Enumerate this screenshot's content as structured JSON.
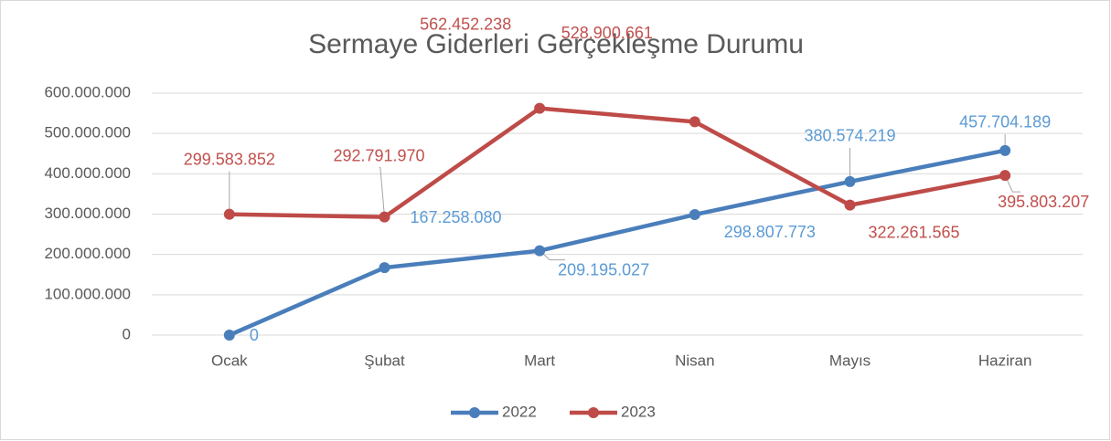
{
  "chart_data": {
    "type": "line",
    "title": "Sermaye Giderleri Gerçekleşme Durumu",
    "categories": [
      "Ocak",
      "Şubat",
      "Mart",
      "Nisan",
      "Mayıs",
      "Haziran"
    ],
    "series": [
      {
        "name": "2022",
        "color": "#4a7ebb",
        "label_color": "#5b9bd5",
        "values": [
          0,
          167258080,
          209195027,
          298807773,
          380574219,
          457704189
        ],
        "value_labels": [
          "0",
          "167.258.080",
          "209.195.027",
          "298.807.773",
          "380.574.219",
          "457.704.189"
        ]
      },
      {
        "name": "2023",
        "color": "#be4b48",
        "label_color": "#c0504d",
        "values": [
          299583852,
          292791970,
          562452238,
          528900661,
          322261565,
          395803207
        ],
        "value_labels": [
          "299.583.852",
          "292.791.970",
          "562.452.238",
          "528.900.661",
          "322.261.565",
          "395.803.207"
        ]
      }
    ],
    "ylim": [
      0,
      600000000
    ],
    "yticks": [
      0,
      {
        "value": 100000000,
        "label": "100.000.000"
      },
      {
        "value": 200000000,
        "label": "200.000.000"
      },
      {
        "value": 300000000,
        "label": "300.000.000"
      },
      {
        "value": 400000000,
        "label": "400.000.000"
      },
      {
        "value": 500000000,
        "label": "500.000.000"
      },
      {
        "value": 600000000,
        "label": "600.000.000"
      }
    ],
    "grid": true,
    "legend": "bottom"
  }
}
